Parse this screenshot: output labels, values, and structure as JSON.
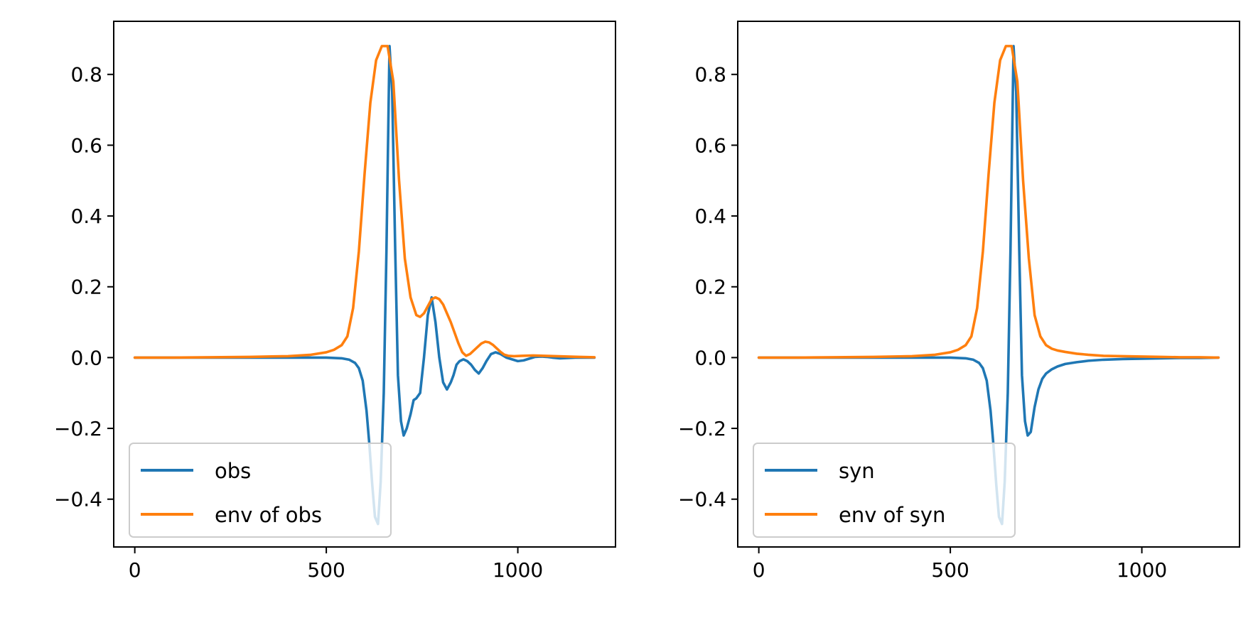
{
  "colors": {
    "series1": "#1f77b4",
    "series2": "#ff7f0e",
    "axes": "#000000",
    "legend_border": "#cccccc"
  },
  "chart_data": [
    {
      "type": "line",
      "xlim": [
        -55,
        1255
      ],
      "ylim": [
        -0.535,
        0.95
      ],
      "xticks": [
        0,
        500,
        1000
      ],
      "yticks": [
        -0.4,
        -0.2,
        0.0,
        0.2,
        0.4,
        0.6,
        0.8
      ],
      "xtick_labels": [
        "0",
        "500",
        "1000"
      ],
      "ytick_labels": [
        "−0.4",
        "−0.2",
        "0.0",
        "0.2",
        "0.4",
        "0.6",
        "0.8"
      ],
      "legend_position": "lower-left",
      "grid": false,
      "series": [
        {
          "name": "obs",
          "color": "#1f77b4",
          "x": [
            0,
            100,
            200,
            300,
            400,
            500,
            540,
            560,
            575,
            585,
            595,
            605,
            612,
            620,
            627,
            635,
            642,
            650,
            657,
            665,
            672,
            680,
            687,
            695,
            702,
            710,
            720,
            728,
            735,
            745,
            755,
            765,
            775,
            785,
            795,
            805,
            815,
            825,
            832,
            840,
            848,
            858,
            868,
            878,
            888,
            898,
            908,
            918,
            930,
            942,
            955,
            970,
            985,
            1000,
            1015,
            1030,
            1045,
            1060,
            1075,
            1090,
            1110,
            1130,
            1150,
            1170,
            1200
          ],
          "y": [
            0,
            0,
            0,
            0,
            0,
            0,
            -0.002,
            -0.006,
            -0.015,
            -0.03,
            -0.065,
            -0.15,
            -0.24,
            -0.36,
            -0.45,
            -0.47,
            -0.35,
            -0.1,
            0.3,
            0.88,
            0.75,
            0.3,
            -0.05,
            -0.18,
            -0.22,
            -0.2,
            -0.16,
            -0.12,
            -0.115,
            -0.1,
            0.0,
            0.12,
            0.17,
            0.1,
            0.0,
            -0.07,
            -0.09,
            -0.07,
            -0.05,
            -0.02,
            -0.01,
            -0.005,
            -0.01,
            -0.02,
            -0.035,
            -0.045,
            -0.03,
            -0.01,
            0.01,
            0.015,
            0.01,
            0.0,
            -0.005,
            -0.01,
            -0.008,
            -0.003,
            0.002,
            0.003,
            0.002,
            0.0,
            -0.002,
            -0.001,
            0.0,
            0.0,
            0.0
          ]
        },
        {
          "name": "env of obs",
          "color": "#ff7f0e",
          "x": [
            0,
            100,
            200,
            300,
            400,
            460,
            500,
            520,
            540,
            555,
            570,
            585,
            600,
            615,
            630,
            645,
            660,
            675,
            690,
            705,
            720,
            735,
            745,
            755,
            765,
            775,
            785,
            795,
            805,
            815,
            825,
            835,
            845,
            855,
            865,
            875,
            885,
            895,
            905,
            915,
            925,
            935,
            945,
            955,
            965,
            975,
            990,
            1010,
            1040,
            1070,
            1100,
            1130,
            1160,
            1200
          ],
          "y": [
            0,
            0,
            0.001,
            0.002,
            0.004,
            0.008,
            0.015,
            0.022,
            0.035,
            0.06,
            0.14,
            0.3,
            0.52,
            0.72,
            0.84,
            0.88,
            0.88,
            0.78,
            0.5,
            0.28,
            0.17,
            0.12,
            0.115,
            0.125,
            0.145,
            0.165,
            0.17,
            0.165,
            0.15,
            0.125,
            0.1,
            0.07,
            0.04,
            0.015,
            0.005,
            0.01,
            0.02,
            0.03,
            0.04,
            0.045,
            0.043,
            0.036,
            0.026,
            0.016,
            0.008,
            0.005,
            0.004,
            0.005,
            0.006,
            0.005,
            0.004,
            0.003,
            0.002,
            0.001
          ]
        }
      ]
    },
    {
      "type": "line",
      "xlim": [
        -55,
        1255
      ],
      "ylim": [
        -0.535,
        0.95
      ],
      "xticks": [
        0,
        500,
        1000
      ],
      "yticks": [
        -0.4,
        -0.2,
        0.0,
        0.2,
        0.4,
        0.6,
        0.8
      ],
      "xtick_labels": [
        "0",
        "500",
        "1000"
      ],
      "ytick_labels": [
        "−0.4",
        "−0.2",
        "0.0",
        "0.2",
        "0.4",
        "0.6",
        "0.8"
      ],
      "legend_position": "lower-left",
      "grid": false,
      "series": [
        {
          "name": "syn",
          "color": "#1f77b4",
          "x": [
            0,
            100,
            200,
            300,
            400,
            500,
            540,
            560,
            575,
            585,
            595,
            605,
            612,
            620,
            627,
            635,
            642,
            650,
            657,
            665,
            672,
            680,
            687,
            695,
            702,
            710,
            720,
            730,
            740,
            750,
            765,
            780,
            800,
            830,
            860,
            900,
            950,
            1000,
            1050,
            1100,
            1150,
            1200
          ],
          "y": [
            0,
            0,
            0,
            0,
            0,
            0,
            -0.002,
            -0.006,
            -0.015,
            -0.03,
            -0.065,
            -0.15,
            -0.24,
            -0.36,
            -0.45,
            -0.47,
            -0.35,
            -0.1,
            0.3,
            0.88,
            0.75,
            0.3,
            -0.05,
            -0.18,
            -0.22,
            -0.21,
            -0.14,
            -0.09,
            -0.06,
            -0.045,
            -0.033,
            -0.025,
            -0.018,
            -0.013,
            -0.009,
            -0.006,
            -0.004,
            -0.003,
            -0.002,
            -0.001,
            -0.001,
            0.0
          ]
        },
        {
          "name": "env of syn",
          "color": "#ff7f0e",
          "x": [
            0,
            100,
            200,
            300,
            400,
            460,
            500,
            520,
            540,
            555,
            570,
            585,
            600,
            615,
            630,
            645,
            660,
            675,
            690,
            705,
            720,
            735,
            750,
            765,
            780,
            800,
            830,
            860,
            900,
            950,
            1000,
            1050,
            1100,
            1150,
            1200
          ],
          "y": [
            0,
            0,
            0.001,
            0.002,
            0.004,
            0.008,
            0.015,
            0.022,
            0.035,
            0.06,
            0.14,
            0.3,
            0.52,
            0.72,
            0.84,
            0.88,
            0.88,
            0.78,
            0.5,
            0.28,
            0.12,
            0.06,
            0.035,
            0.025,
            0.02,
            0.016,
            0.011,
            0.008,
            0.005,
            0.004,
            0.003,
            0.002,
            0.001,
            0.001,
            0.0
          ]
        }
      ]
    }
  ]
}
